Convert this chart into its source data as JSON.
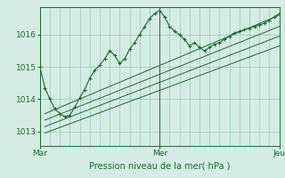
{
  "xlabel": "Pression niveau de la mer( hPa )",
  "bg_color": "#d4ece4",
  "grid_color": "#9ec8b8",
  "line_color": "#1a6b2a",
  "ylim": [
    1012.55,
    1016.85
  ],
  "xlim": [
    0,
    96
  ],
  "yticks": [
    1013,
    1014,
    1015,
    1016
  ],
  "xtick_positions": [
    0,
    48,
    96
  ],
  "xtick_labels": [
    "Mar",
    "Mer",
    "Jeu"
  ],
  "vline_positions": [
    0,
    48,
    96
  ],
  "series1_x": [
    0,
    2,
    4,
    6,
    8,
    10,
    12,
    14,
    16,
    18,
    20,
    22,
    24,
    26,
    28,
    30,
    32,
    34,
    36,
    38,
    40,
    42,
    44,
    46,
    48,
    50,
    52,
    54,
    56,
    58,
    60,
    62,
    64,
    66,
    68,
    70,
    72,
    74,
    76,
    78,
    80,
    82,
    84,
    86,
    88,
    90,
    92,
    94,
    96
  ],
  "series1_y": [
    1015.0,
    1014.35,
    1014.0,
    1013.7,
    1013.55,
    1013.45,
    1013.5,
    1013.75,
    1014.05,
    1014.3,
    1014.65,
    1014.9,
    1015.05,
    1015.25,
    1015.5,
    1015.35,
    1015.1,
    1015.25,
    1015.55,
    1015.75,
    1016.0,
    1016.25,
    1016.5,
    1016.65,
    1016.75,
    1016.55,
    1016.25,
    1016.1,
    1016.0,
    1015.85,
    1015.65,
    1015.75,
    1015.6,
    1015.5,
    1015.6,
    1015.7,
    1015.75,
    1015.85,
    1015.95,
    1016.05,
    1016.1,
    1016.15,
    1016.2,
    1016.25,
    1016.3,
    1016.35,
    1016.45,
    1016.55,
    1016.65
  ],
  "trend_lines": [
    {
      "x": [
        2,
        96
      ],
      "y": [
        1013.55,
        1016.6
      ]
    },
    {
      "x": [
        2,
        96
      ],
      "y": [
        1013.35,
        1016.25
      ]
    },
    {
      "x": [
        2,
        96
      ],
      "y": [
        1013.15,
        1015.95
      ]
    },
    {
      "x": [
        2,
        96
      ],
      "y": [
        1012.95,
        1015.65
      ]
    }
  ]
}
